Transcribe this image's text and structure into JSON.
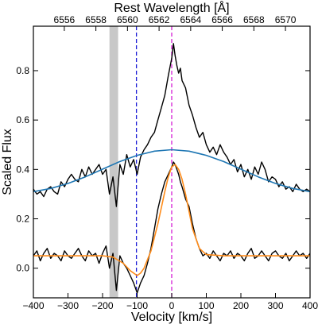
{
  "chart_data": {
    "type": "line",
    "title": "",
    "xlabel": "Velocity [km/s]",
    "ylabel": "Scaled Flux",
    "top_xlabel": "Rest Wavelength [Å]",
    "xlim": [
      -400,
      400
    ],
    "ylim": [
      -0.12,
      0.98
    ],
    "grid": false,
    "legend": "none",
    "x_ticks": [
      -400,
      -300,
      -200,
      -100,
      0,
      100,
      200,
      300,
      400
    ],
    "x_tick_labels": [
      "−400",
      "−300",
      "−200",
      "−100",
      "0",
      "100",
      "200",
      "300",
      "400"
    ],
    "y_ticks": [
      0.0,
      0.2,
      0.4,
      0.6,
      0.8
    ],
    "y_tick_labels": [
      "0.0",
      "0.2",
      "0.4",
      "0.6",
      "0.8"
    ],
    "top_ticks_wavelength": [
      6556,
      6558,
      6560,
      6562,
      6564,
      6566,
      6568,
      6570
    ],
    "top_tick_labels": [
      "6556",
      "6558",
      "6560",
      "6562",
      "6564",
      "6566",
      "6568",
      "6570"
    ],
    "rest_wavelength_zero_velocity": 6562.8,
    "shaded_band": {
      "x": [
        -180,
        -155
      ],
      "color": "#c8c8c8"
    },
    "vertical_lines": [
      {
        "x": -102,
        "color": "#1f1fd6",
        "style": "dashed"
      },
      {
        "x": 0,
        "color": "#d61fd6",
        "style": "dashed"
      }
    ],
    "series": [
      {
        "color": "#000000",
        "x": [
          -400,
          -390,
          -380,
          -370,
          -360,
          -350,
          -340,
          -330,
          -320,
          -310,
          -300,
          -290,
          -280,
          -270,
          -260,
          -250,
          -240,
          -230,
          -220,
          -210,
          -200,
          -190,
          -180,
          -170,
          -160,
          -150,
          -140,
          -130,
          -120,
          -110,
          -100,
          -90,
          -80,
          -70,
          -60,
          -50,
          -40,
          -30,
          -20,
          -10,
          0,
          5,
          10,
          15,
          20,
          25,
          30,
          40,
          50,
          60,
          70,
          80,
          90,
          100,
          110,
          120,
          130,
          140,
          150,
          160,
          170,
          180,
          190,
          200,
          210,
          220,
          230,
          240,
          250,
          260,
          270,
          280,
          290,
          300,
          310,
          320,
          330,
          340,
          350,
          360,
          370,
          380,
          390,
          400
        ],
        "values": [
          0.32,
          0.3,
          0.31,
          0.29,
          0.32,
          0.33,
          0.31,
          0.3,
          0.35,
          0.33,
          0.36,
          0.38,
          0.36,
          0.35,
          0.4,
          0.37,
          0.41,
          0.38,
          0.4,
          0.42,
          0.38,
          0.4,
          0.3,
          0.37,
          0.25,
          0.42,
          0.38,
          0.46,
          0.41,
          0.44,
          0.38,
          0.45,
          0.48,
          0.5,
          0.53,
          0.55,
          0.6,
          0.65,
          0.7,
          0.78,
          0.85,
          0.91,
          0.86,
          0.82,
          0.79,
          0.81,
          0.76,
          0.73,
          0.66,
          0.62,
          0.57,
          0.53,
          0.55,
          0.5,
          0.47,
          0.49,
          0.46,
          0.5,
          0.47,
          0.45,
          0.42,
          0.44,
          0.39,
          0.42,
          0.37,
          0.4,
          0.36,
          0.41,
          0.38,
          0.43,
          0.4,
          0.35,
          0.37,
          0.36,
          0.33,
          0.35,
          0.32,
          0.33,
          0.31,
          0.34,
          0.32,
          0.31,
          0.32,
          0.31
        ]
      },
      {
        "color": "#1f77b4",
        "x": [
          -400,
          -350,
          -300,
          -250,
          -200,
          -150,
          -100,
          -50,
          0,
          50,
          100,
          150,
          200,
          250,
          300,
          350,
          400
        ],
        "values": [
          0.31,
          0.323,
          0.343,
          0.37,
          0.401,
          0.432,
          0.457,
          0.474,
          0.48,
          0.474,
          0.457,
          0.432,
          0.401,
          0.37,
          0.343,
          0.323,
          0.31
        ]
      },
      {
        "color": "#000000",
        "x": [
          -400,
          -390,
          -380,
          -370,
          -360,
          -350,
          -340,
          -330,
          -320,
          -310,
          -300,
          -290,
          -280,
          -270,
          -260,
          -250,
          -240,
          -230,
          -220,
          -210,
          -200,
          -190,
          -180,
          -170,
          -160,
          -150,
          -140,
          -130,
          -120,
          -110,
          -100,
          -90,
          -80,
          -70,
          -60,
          -50,
          -40,
          -30,
          -20,
          -10,
          0,
          5,
          10,
          15,
          20,
          25,
          30,
          40,
          50,
          60,
          70,
          80,
          90,
          100,
          110,
          120,
          130,
          140,
          150,
          160,
          170,
          180,
          190,
          200,
          210,
          220,
          230,
          240,
          250,
          260,
          270,
          280,
          290,
          300,
          310,
          320,
          330,
          340,
          350,
          360,
          370,
          380,
          390,
          400
        ],
        "values": [
          0.05,
          0.07,
          0.03,
          0.06,
          0.08,
          0.04,
          0.06,
          0.05,
          0.03,
          0.07,
          0.05,
          0.04,
          0.06,
          0.08,
          0.05,
          0.03,
          0.07,
          0.05,
          0.06,
          0.02,
          0.06,
          0.09,
          0.0,
          0.06,
          -0.09,
          0.05,
          0.02,
          0.0,
          -0.03,
          -0.06,
          -0.1,
          -0.06,
          -0.03,
          0.02,
          0.08,
          0.16,
          0.24,
          0.3,
          0.35,
          0.38,
          0.41,
          0.43,
          0.42,
          0.4,
          0.38,
          0.35,
          0.33,
          0.28,
          0.25,
          0.18,
          0.12,
          0.08,
          0.05,
          0.06,
          0.04,
          0.07,
          0.05,
          0.03,
          0.06,
          0.05,
          0.07,
          0.04,
          0.06,
          0.05,
          0.03,
          0.06,
          0.08,
          0.04,
          0.05,
          0.07,
          0.05,
          0.03,
          0.06,
          0.07,
          0.05,
          0.04,
          0.06,
          0.03,
          0.05,
          0.07,
          0.05,
          0.06,
          0.04,
          0.06
        ]
      },
      {
        "color": "#ff8c1a",
        "x": [
          -400,
          -350,
          -300,
          -250,
          -200,
          -170,
          -140,
          -120,
          -100,
          -90,
          -80,
          -60,
          -40,
          -20,
          -10,
          0,
          10,
          20,
          30,
          40,
          50,
          60,
          80,
          100,
          150,
          200,
          300,
          400
        ],
        "values": [
          0.05,
          0.05,
          0.05,
          0.05,
          0.05,
          0.045,
          0.02,
          -0.01,
          -0.03,
          -0.02,
          0.0,
          0.07,
          0.18,
          0.31,
          0.37,
          0.41,
          0.42,
          0.4,
          0.36,
          0.3,
          0.23,
          0.16,
          0.08,
          0.055,
          0.05,
          0.05,
          0.05,
          0.05
        ]
      }
    ]
  }
}
